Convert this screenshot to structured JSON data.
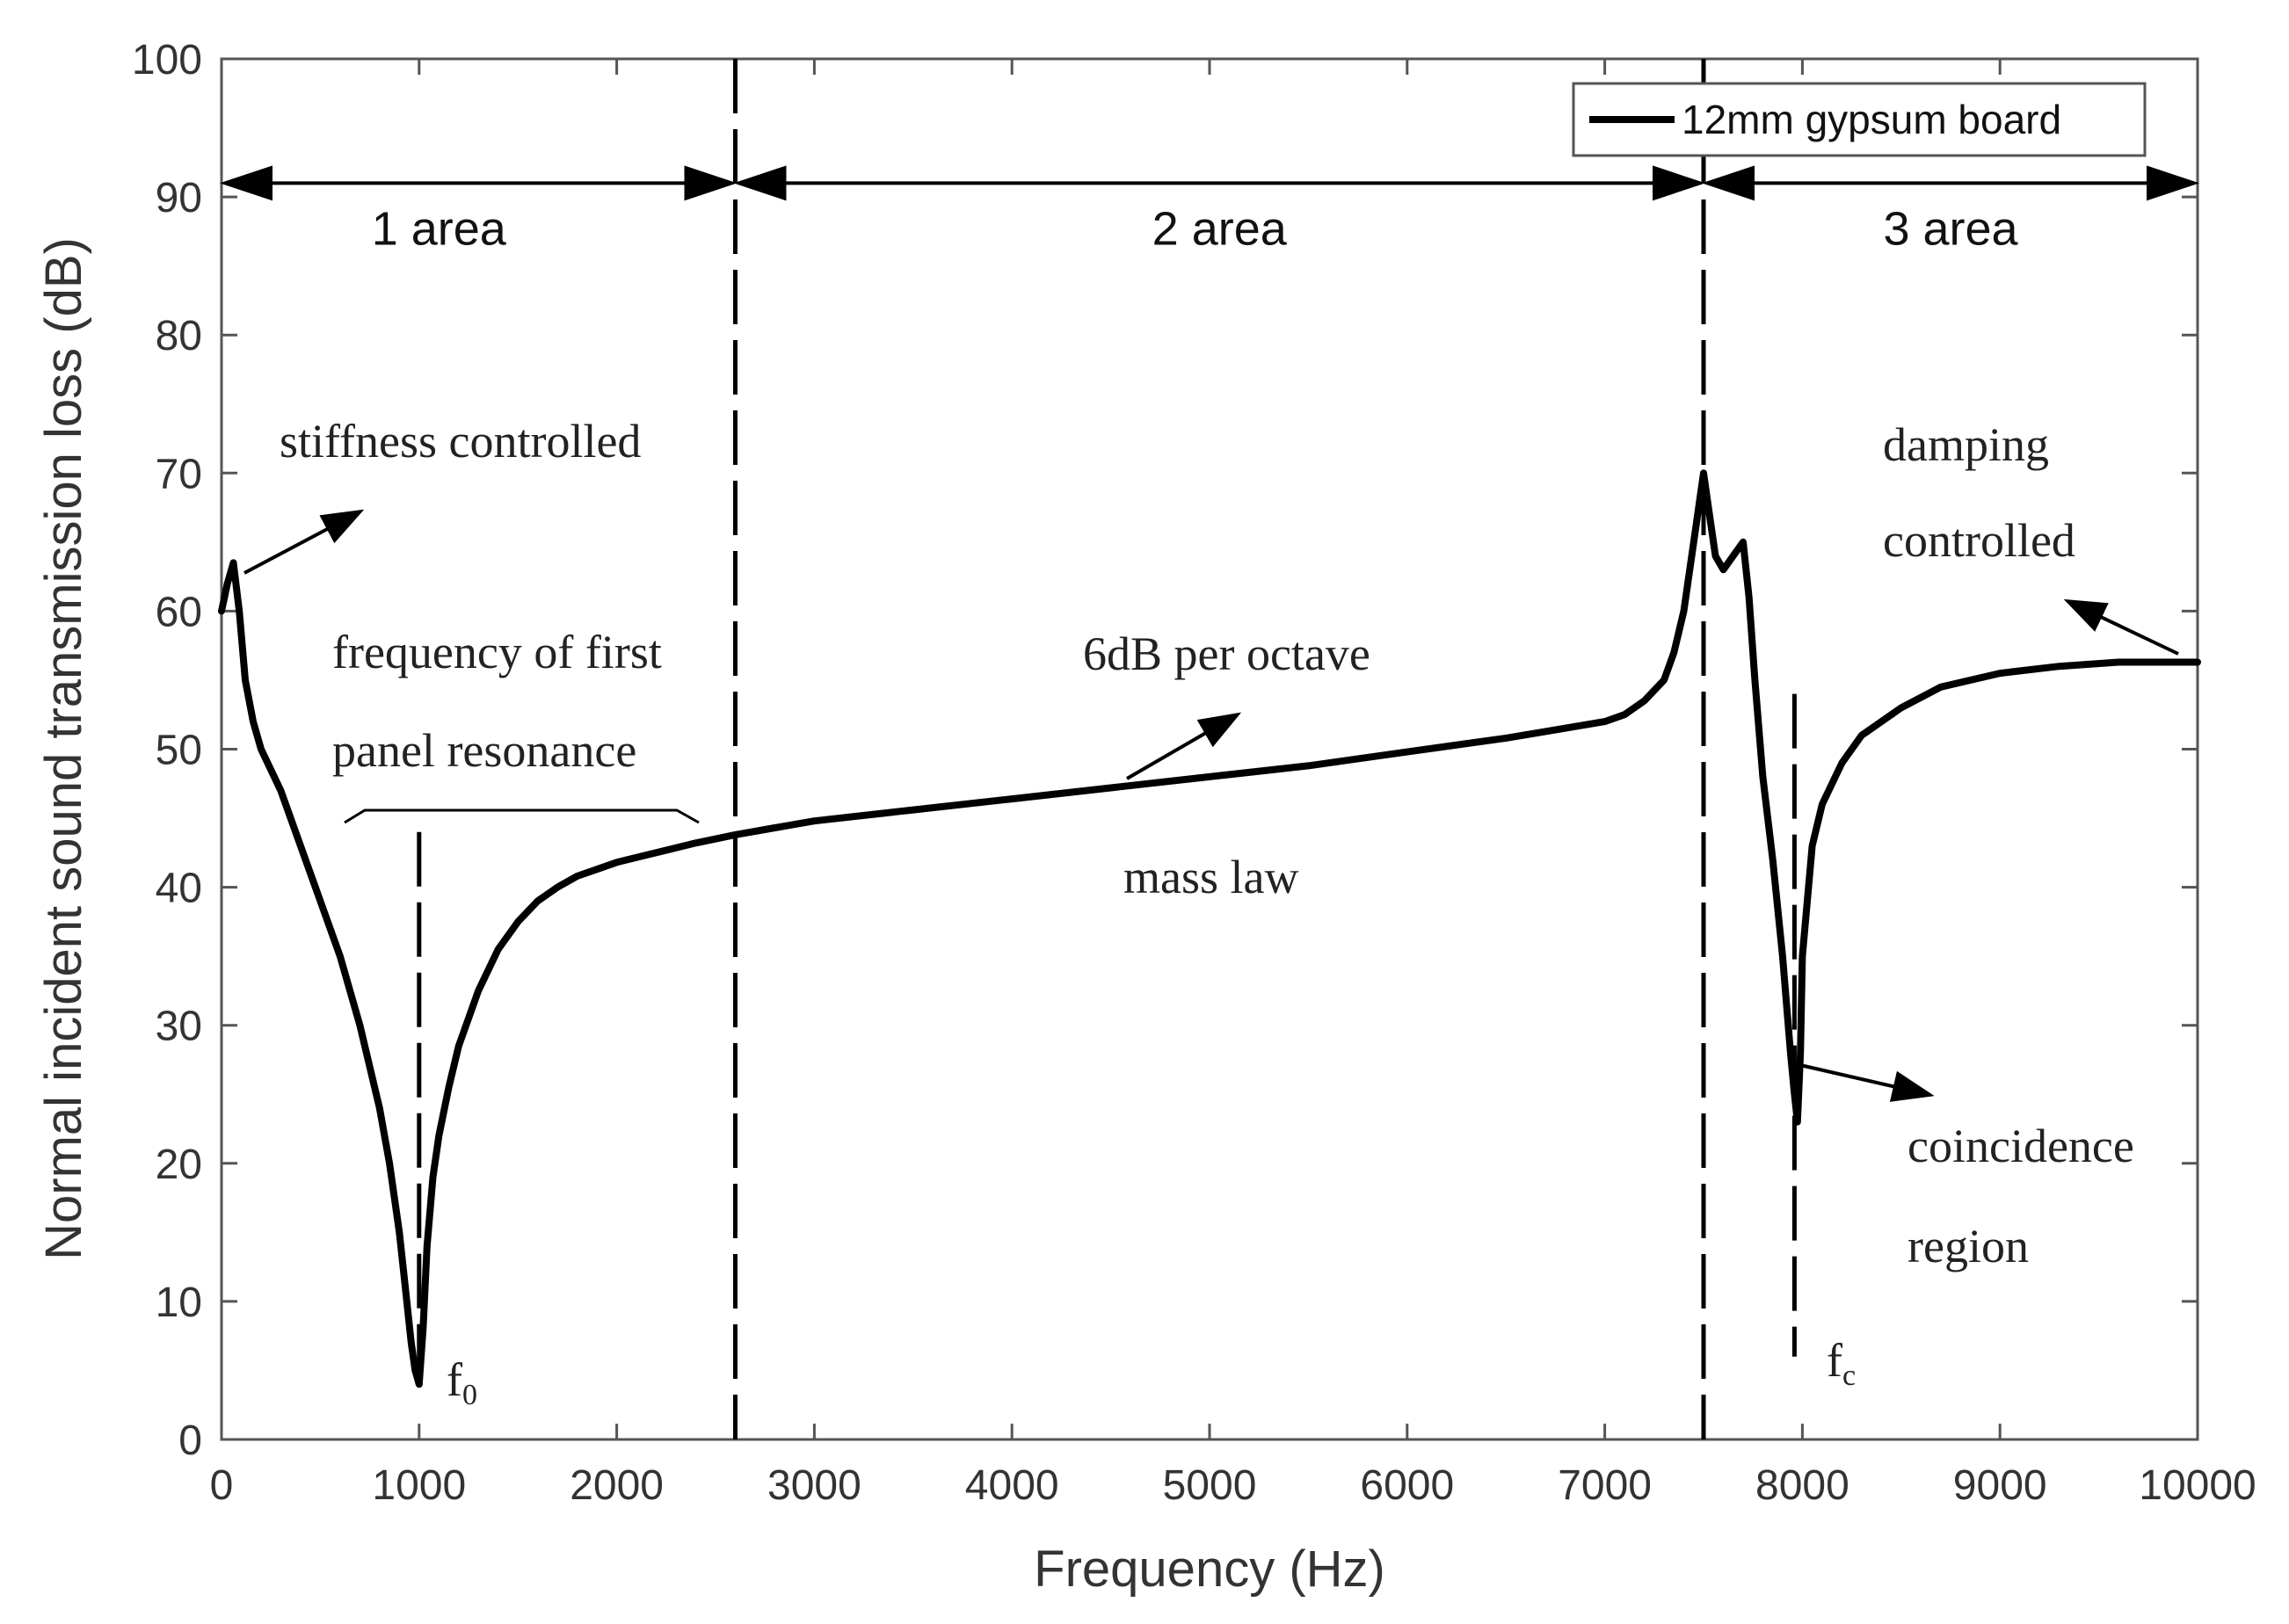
{
  "chart_data": {
    "type": "line",
    "title": "",
    "xlabel": "Frequency (Hz)",
    "ylabel": "Normal incident sound transmission loss (dB)",
    "xlim": [
      0,
      10000
    ],
    "ylim": [
      0,
      100
    ],
    "grid": false,
    "x_ticks": [
      "0",
      "1000",
      "2000",
      "3000",
      "4000",
      "5000",
      "6000",
      "7000",
      "8000",
      "9000",
      "10000"
    ],
    "y_ticks": [
      "0",
      "10",
      "20",
      "30",
      "40",
      "50",
      "60",
      "70",
      "80",
      "90",
      "100"
    ],
    "legend": {
      "position": "top-right",
      "entries": [
        "12mm gypsum board"
      ]
    },
    "series": [
      {
        "name": "12mm gypsum board",
        "color": "#000000",
        "x": [
          0,
          30,
          60,
          90,
          120,
          160,
          200,
          300,
          400,
          500,
          600,
          700,
          800,
          850,
          900,
          930,
          960,
          980,
          1000,
          1020,
          1040,
          1070,
          1100,
          1150,
          1200,
          1300,
          1400,
          1500,
          1600,
          1700,
          1800,
          1900,
          2000,
          2200,
          2400,
          2600,
          2800,
          3000,
          3500,
          4000,
          4500,
          5000,
          5500,
          6000,
          6500,
          7000,
          7100,
          7200,
          7300,
          7350,
          7400,
          7450,
          7480,
          7500,
          7530,
          7560,
          7600,
          7650,
          7700,
          7730,
          7760,
          7800,
          7850,
          7900,
          7940,
          7960,
          7975,
          7990,
          8000,
          8050,
          8100,
          8200,
          8300,
          8500,
          8700,
          9000,
          9300,
          9600,
          10000
        ],
        "y": [
          60,
          62,
          63.5,
          60,
          55,
          52,
          50,
          47,
          43,
          39,
          35,
          30,
          24,
          20,
          15,
          11,
          7,
          5,
          4,
          8,
          14,
          19,
          22,
          25.5,
          28.5,
          32.5,
          35.5,
          37.5,
          39,
          40,
          40.8,
          41.3,
          41.8,
          42.5,
          43.2,
          43.8,
          44.3,
          44.8,
          45.6,
          46.4,
          47.2,
          48,
          48.8,
          49.8,
          50.8,
          52,
          52.5,
          53.5,
          55,
          57,
          60,
          65,
          68,
          70,
          67,
          64,
          63,
          64,
          65,
          61,
          55,
          48,
          42,
          35,
          28,
          25,
          23,
          28,
          35,
          43,
          46,
          49,
          51,
          53,
          54.5,
          55.5,
          56,
          56.3,
          56.3
        ]
      }
    ],
    "dividers_x": [
      2600,
      7500
    ],
    "dashed_markers": [
      {
        "x": 1000,
        "y_range": [
          4,
          44
        ]
      },
      {
        "x": 7960,
        "y_range": [
          6,
          54
        ]
      }
    ],
    "areas": [
      {
        "label": "1 area",
        "x_range": [
          0,
          2600
        ],
        "label_x": 1100,
        "arrow_y": 91
      },
      {
        "label": "2 area",
        "x_range": [
          2600,
          7500
        ],
        "label_x": 5050,
        "arrow_y": 91
      },
      {
        "label": "3 area",
        "x_range": [
          7500,
          10000
        ],
        "label_x": 8750,
        "arrow_y": 91
      }
    ],
    "annotations": {
      "stiffness": "stiffness controlled",
      "first_resonance_line1": "frequency of first",
      "first_resonance_line2": "panel resonance",
      "octave": "6dB per octave",
      "mass_law": "mass law",
      "damping_line1": "damping",
      "damping_line2": "controlled",
      "coincidence_line1": "coincidence",
      "coincidence_line2": "region",
      "f0_main": "f",
      "f0_sub": "0",
      "fc_main": "f",
      "fc_sub": "c"
    }
  }
}
